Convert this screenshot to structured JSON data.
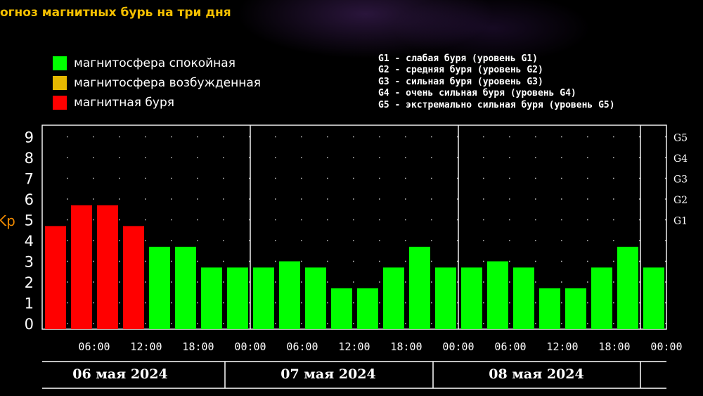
{
  "title": "огноз магнитных бурь на три дня",
  "legend": [
    {
      "label": "магнитосфера спокойная",
      "color": "#00ff00"
    },
    {
      "label": "магнитосфера возбужденная",
      "color": "#e6b800"
    },
    {
      "label": "магнитная буря",
      "color": "#ff0000"
    }
  ],
  "g_levels": [
    "G1 - слабая буря (уровень G1)",
    "G2 - средняя буря (уровень G2)",
    "G3 - сильная буря (уровень G3)",
    "G4 - очень сильная буря (уровень G4)",
    "G5 - экстремально сильная буря (уровень G5)"
  ],
  "chart_data": {
    "type": "bar",
    "ylabel": "Kp",
    "ylim": [
      0,
      9
    ],
    "yticks": [
      0,
      1,
      2,
      3,
      4,
      5,
      6,
      7,
      8,
      9
    ],
    "right_ticks": [
      {
        "label": "G1",
        "value": 5
      },
      {
        "label": "G2",
        "value": 6
      },
      {
        "label": "G3",
        "value": 7
      },
      {
        "label": "G4",
        "value": 8
      },
      {
        "label": "G5",
        "value": 9
      }
    ],
    "grid": "dotted",
    "values": [
      4.7,
      5.7,
      5.7,
      4.7,
      3.7,
      3.7,
      2.7,
      2.7,
      2.7,
      3.0,
      2.7,
      1.7,
      1.7,
      2.7,
      3.7,
      2.7,
      2.7,
      3.0,
      2.7,
      1.7,
      1.7,
      2.7,
      3.7,
      2.7
    ],
    "colors": [
      "#ff0000",
      "#ff0000",
      "#ff0000",
      "#ff0000",
      "#00ff00",
      "#00ff00",
      "#00ff00",
      "#00ff00",
      "#00ff00",
      "#00ff00",
      "#00ff00",
      "#00ff00",
      "#00ff00",
      "#00ff00",
      "#00ff00",
      "#00ff00",
      "#00ff00",
      "#00ff00",
      "#00ff00",
      "#00ff00",
      "#00ff00",
      "#00ff00",
      "#00ff00",
      "#00ff00"
    ],
    "xticks": [
      "06:00",
      "12:00",
      "18:00",
      "00:00",
      "06:00",
      "12:00",
      "18:00",
      "00:00",
      "06:00",
      "12:00",
      "18:00",
      "00:00"
    ],
    "days": [
      "06 мая 2024",
      "07 мая 2024",
      "08 мая 2024"
    ]
  }
}
